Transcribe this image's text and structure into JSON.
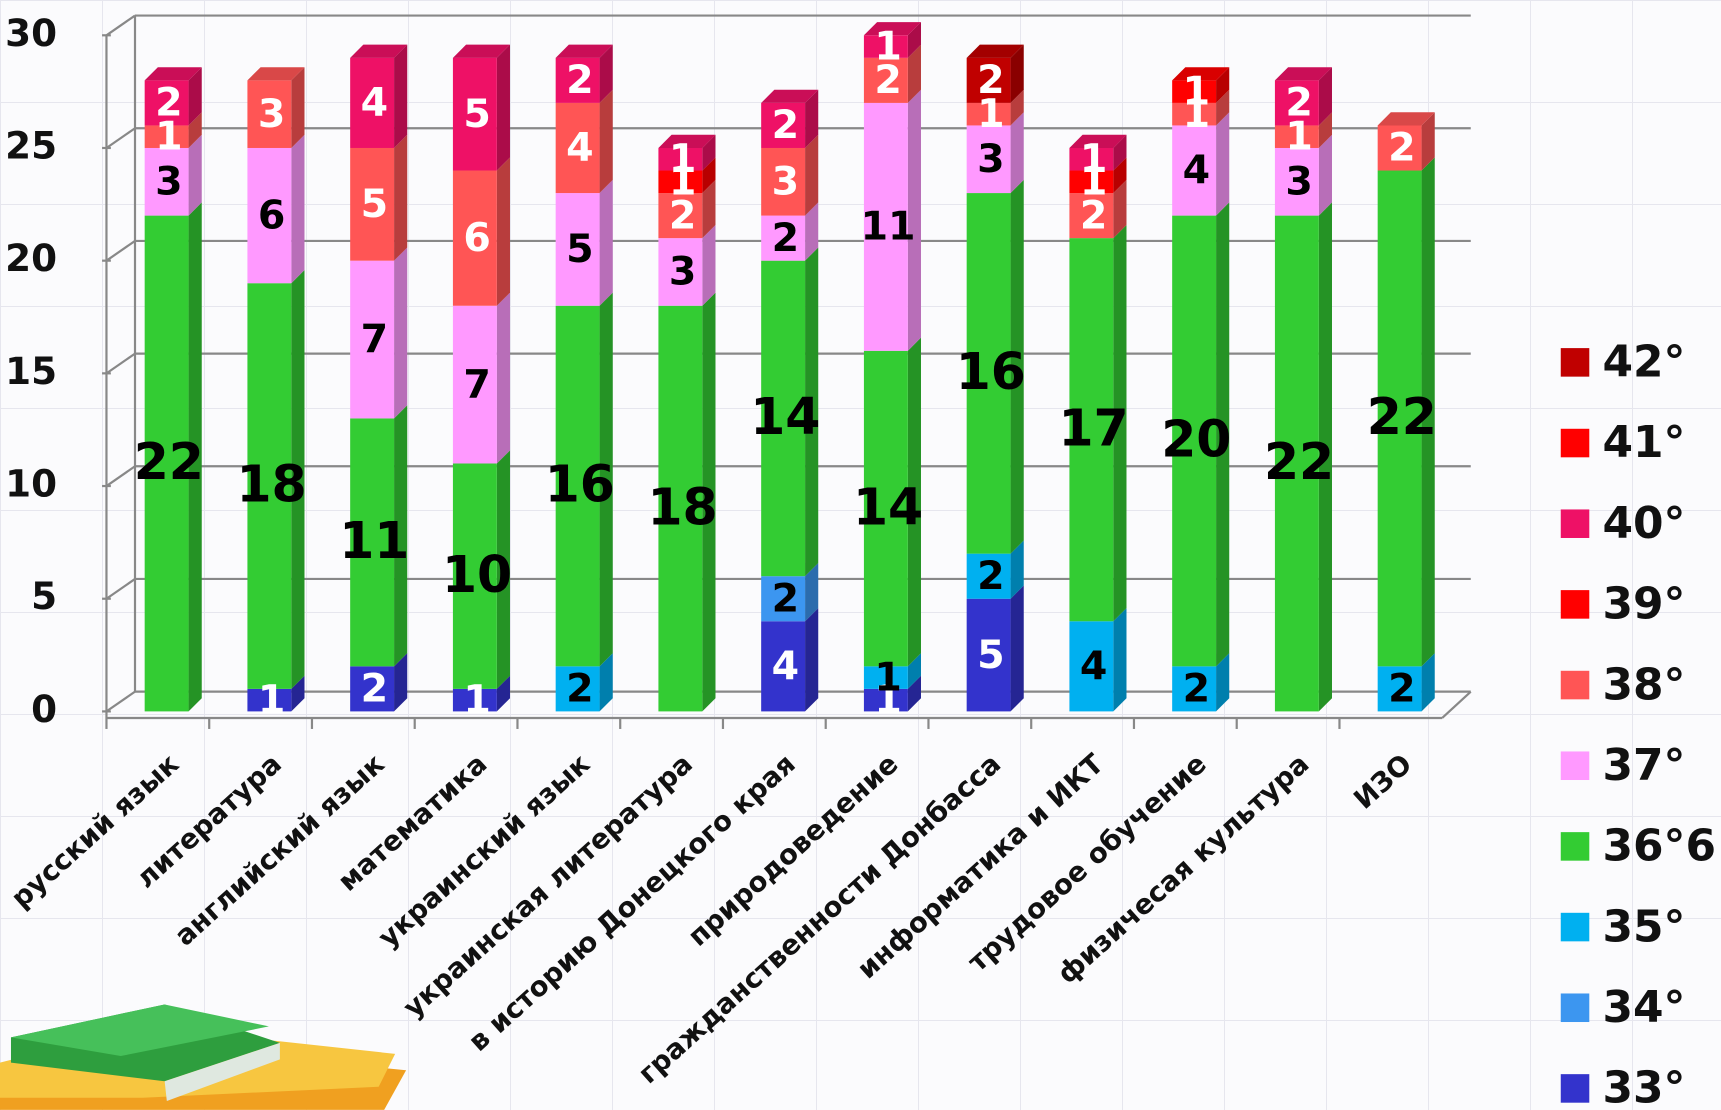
{
  "chart_data": {
    "type": "bar3d-stacked",
    "categories": [
      "русский язык",
      "литература",
      "английский язык",
      "математика",
      "украинский язык",
      "украинская литература",
      "в историю Донецкого края",
      "природоведение",
      "гражданственности Донбасса",
      "информатика и ИКТ",
      "трудовое обучение",
      "физичесая культура",
      "ИЗО"
    ],
    "series": [
      {
        "name": "33°",
        "color": "#3333cc",
        "label_color": "#ffffff",
        "values": [
          null,
          1,
          2,
          1,
          null,
          null,
          4,
          1,
          5,
          null,
          null,
          null,
          null
        ]
      },
      {
        "name": "34°",
        "color": "#3c96f0",
        "label_color": "#000000",
        "values": [
          null,
          null,
          null,
          null,
          null,
          null,
          2,
          null,
          null,
          null,
          null,
          null,
          null
        ]
      },
      {
        "name": "35°",
        "color": "#00b0f0",
        "label_color": "#000000",
        "values": [
          null,
          null,
          null,
          null,
          2,
          null,
          null,
          1,
          2,
          4,
          2,
          null,
          2
        ]
      },
      {
        "name": "36°6",
        "color": "#33cc33",
        "label_color": "#000000",
        "values": [
          22,
          18,
          11,
          10,
          16,
          18,
          14,
          14,
          16,
          17,
          20,
          22,
          22
        ]
      },
      {
        "name": "37°",
        "color": "#ff99ff",
        "label_color": "#000000",
        "values": [
          3,
          6,
          7,
          7,
          5,
          3,
          2,
          11,
          3,
          null,
          4,
          3,
          null
        ]
      },
      {
        "name": "38°",
        "color": "#ff5555",
        "label_color": "#ffffff",
        "values": [
          1,
          3,
          5,
          6,
          4,
          2,
          3,
          2,
          1,
          2,
          1,
          1,
          2
        ]
      },
      {
        "name": "39°",
        "color": "#ff0000",
        "label_color": "#ffffff",
        "values": [
          null,
          null,
          null,
          null,
          null,
          1,
          null,
          null,
          null,
          1,
          null,
          null,
          null
        ]
      },
      {
        "name": "40°",
        "color": "#ee1166",
        "label_color": "#ffffff",
        "values": [
          2,
          null,
          4,
          5,
          2,
          1,
          2,
          1,
          null,
          1,
          null,
          2,
          null
        ]
      },
      {
        "name": "41°",
        "color": "#ff0000",
        "label_color": "#ffffff",
        "values": [
          null,
          null,
          null,
          null,
          null,
          null,
          null,
          null,
          null,
          null,
          1,
          null,
          null
        ]
      },
      {
        "name": "42°",
        "color": "#c00000",
        "label_color": "#ffffff",
        "values": [
          null,
          null,
          null,
          null,
          null,
          null,
          null,
          null,
          2,
          null,
          null,
          null,
          null
        ]
      }
    ],
    "ylim": [
      0,
      30
    ],
    "yticks": [
      0,
      5,
      10,
      15,
      20,
      25,
      30
    ],
    "grid": true,
    "legend": "right"
  }
}
